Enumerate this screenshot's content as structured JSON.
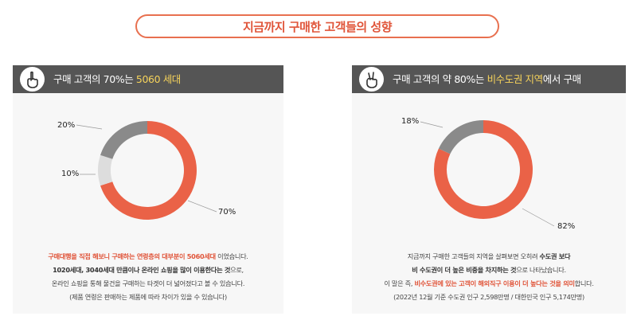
{
  "title": "지금까지 구매한 고객들의 성향",
  "left": {
    "header_pre": "구매 고객의 70%는 ",
    "header_highlight": "5060 세대",
    "icon": "hand-one-finger-icon",
    "chart_data": {
      "type": "pie",
      "categories": [
        "5060 세대",
        "1020 세대",
        "3040 세대"
      ],
      "values": [
        70,
        10,
        20
      ],
      "labels": [
        "70%",
        "10%",
        "20%"
      ],
      "colors": [
        "#ea6247",
        "#dddddd",
        "#8a8a8a"
      ]
    },
    "desc": {
      "l1_red": "구매대행을 직접 해보니 구매하는 연령층의 대부분이 5060세대",
      "l1_rest": " 이었습니다.",
      "l2_bold": "1020세대, 3040세대 만큼이나 온라인 쇼핑을 많이 이용한다는 것",
      "l2_rest": "으로,",
      "l3": "온라인 쇼핑을 통해 물건을 구매하는 타겟이 더 넓어졌다고 볼 수 있습니다.",
      "l4": "(제품 연령은 판매하는 제품에 따라 차이가 있을 수 있습니다)"
    }
  },
  "right": {
    "header_pre": "구매 고객의 약 80%는 ",
    "header_highlight": "비수도권 지역",
    "header_post": "에서 구매",
    "icon": "hand-two-fingers-icon",
    "chart_data": {
      "type": "pie",
      "categories": [
        "비수도권",
        "수도권"
      ],
      "values": [
        82,
        18
      ],
      "labels": [
        "82%",
        "18%"
      ],
      "colors": [
        "#ea6247",
        "#8a8a8a"
      ]
    },
    "desc": {
      "l1_pre": "지금까지 구매한 고객들의 지역을 살펴보면 오히려 ",
      "l1_bold": "수도권 보다",
      "l2_bold": "비 수도권이 더 높은 비중을 차지하는 것",
      "l2_rest": "으로 나타났습니다.",
      "l3_pre": "이 말은 즉, ",
      "l3_red": "비수도권에 있는 고객이 해외직구 이용이 더 높다는 것을 의미",
      "l3_rest": "합니다.",
      "l4": "(2022년 12월 기준 수도권 인구 2,598만명 / 대한민국 인구 5,174만명)"
    }
  }
}
